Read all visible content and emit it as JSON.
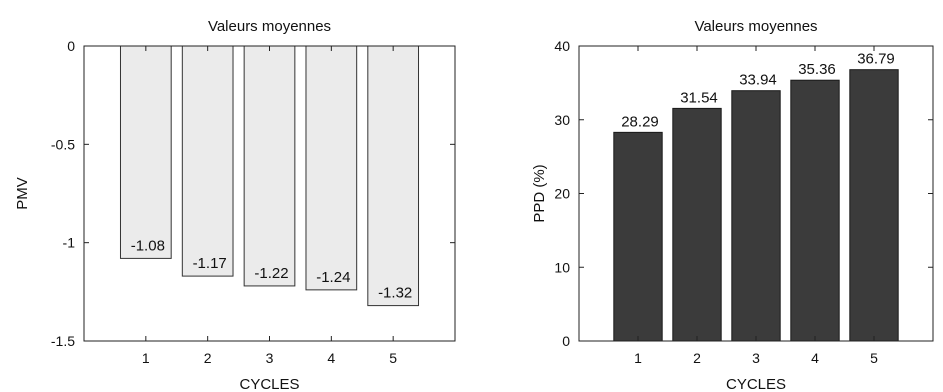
{
  "chart_data": [
    {
      "type": "bar",
      "title": "Valeurs moyennes",
      "xlabel": "CYCLES",
      "ylabel": "PMV",
      "categories": [
        "1",
        "2",
        "3",
        "4",
        "5"
      ],
      "values": [
        -1.08,
        -1.17,
        -1.22,
        -1.24,
        -1.32
      ],
      "data_labels": [
        "-1.08",
        "-1.17",
        "-1.22",
        "-1.24",
        "-1.32"
      ],
      "ylim": [
        -1.5,
        0
      ],
      "yticks": [
        0,
        -0.5,
        -1,
        -1.5
      ],
      "ytick_labels": [
        "0",
        "-0.5",
        "-1",
        "-1.5"
      ],
      "bar_color": "#ebebeb",
      "bar_edge_color": "#333333",
      "grid": false
    },
    {
      "type": "bar",
      "title": "Valeurs moyennes",
      "xlabel": "CYCLES",
      "ylabel": "PPD (%)",
      "categories": [
        "1",
        "2",
        "3",
        "4",
        "5"
      ],
      "values": [
        28.29,
        31.54,
        33.94,
        35.36,
        36.79
      ],
      "data_labels": [
        "28.29",
        "31.54",
        "33.94",
        "35.36",
        "36.79"
      ],
      "ylim": [
        0,
        40
      ],
      "yticks": [
        0,
        10,
        20,
        30,
        40
      ],
      "ytick_labels": [
        "0",
        "10",
        "20",
        "30",
        "40"
      ],
      "bar_color": "#3b3b3b",
      "bar_edge_color": "#1a1a1a",
      "grid": false
    }
  ]
}
